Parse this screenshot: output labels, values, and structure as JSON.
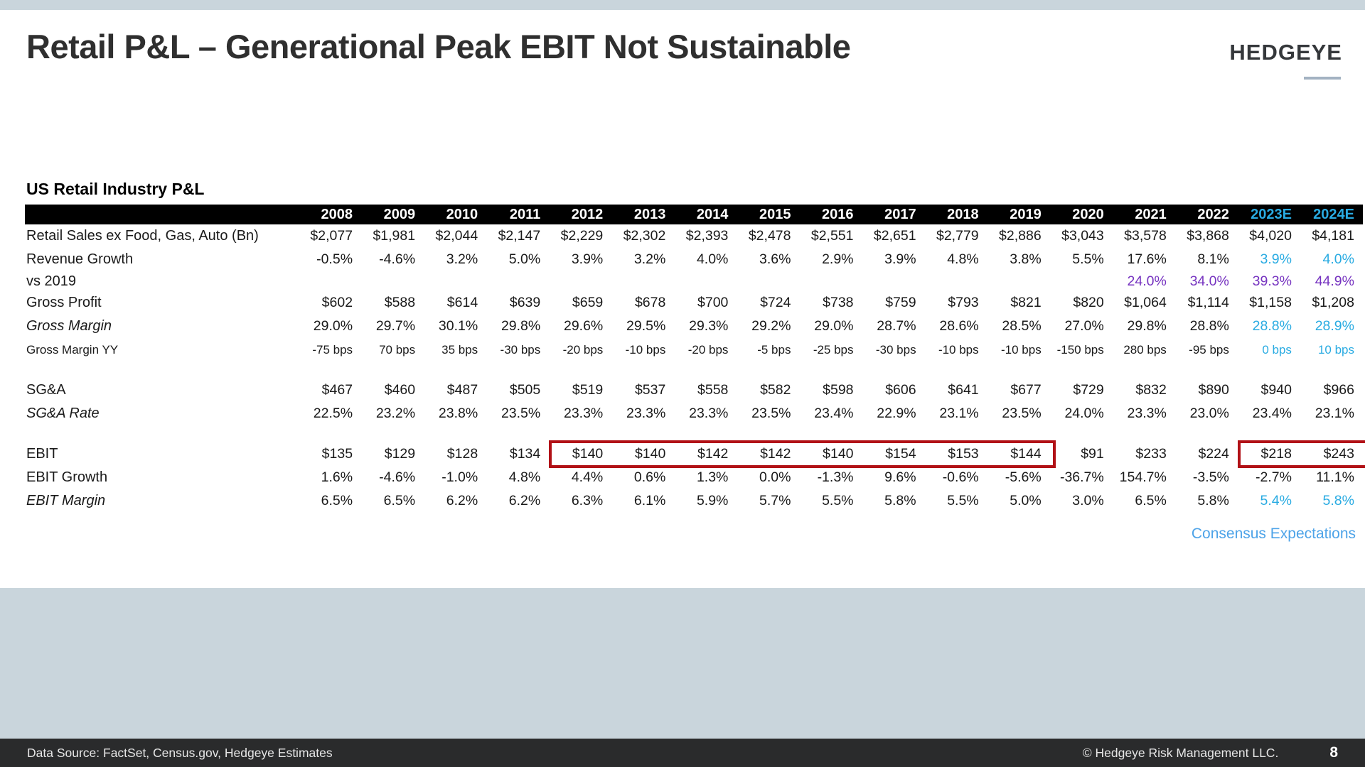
{
  "slide": {
    "title": "Retail P&L – Generational Peak EBIT Not Sustainable",
    "logo": "HEDGEYE",
    "consensus_label": "Consensus Expectations",
    "footer": {
      "source": "Data Source: FactSet, Census.gov, Hedgeye Estimates",
      "copyright": "© Hedgeye Risk Management LLC.",
      "page": "8"
    }
  },
  "colors": {
    "estimate_blue": "#29ABE2",
    "purple": "#7633C0",
    "consensus_blue": "#4DA3E8",
    "highlight_red": "#B11116",
    "band": "#C9D5DC",
    "footer_bg": "#2A2B2C",
    "header_bg": "#000000"
  },
  "table": {
    "section_title": "US Retail Industry P&L",
    "columns": [
      "2008",
      "2009",
      "2010",
      "2011",
      "2012",
      "2013",
      "2014",
      "2015",
      "2016",
      "2017",
      "2018",
      "2019",
      "2020",
      "2021",
      "2022",
      "2023E",
      "2024E"
    ],
    "estimate_column_start": 15,
    "rows": [
      {
        "label": "Retail Sales ex Food, Gas, Auto (Bn)",
        "values": [
          "$2,077",
          "$1,981",
          "$2,044",
          "$2,147",
          "$2,229",
          "$2,302",
          "$2,393",
          "$2,478",
          "$2,551",
          "$2,651",
          "$2,779",
          "$2,886",
          "$3,043",
          "$3,578",
          "$3,868",
          "$4,020",
          "$4,181"
        ]
      },
      {
        "label": "Revenue Growth",
        "blue_last_two": true,
        "values": [
          "-0.5%",
          "-4.6%",
          "3.2%",
          "5.0%",
          "3.9%",
          "3.2%",
          "4.0%",
          "3.6%",
          "2.9%",
          "3.9%",
          "4.8%",
          "3.8%",
          "5.5%",
          "17.6%",
          "8.1%",
          "3.9%",
          "4.0%"
        ]
      },
      {
        "label": "vs 2019",
        "all_purple": true,
        "compact": true,
        "values": [
          "",
          "",
          "",
          "",
          "",
          "",
          "",
          "",
          "",
          "",
          "",
          "",
          "",
          "24.0%",
          "34.0%",
          "39.3%",
          "44.9%"
        ]
      },
      {
        "label": "Gross Profit",
        "values": [
          "$602",
          "$588",
          "$614",
          "$639",
          "$659",
          "$678",
          "$700",
          "$724",
          "$738",
          "$759",
          "$793",
          "$821",
          "$820",
          "$1,064",
          "$1,114",
          "$1,158",
          "$1,208"
        ]
      },
      {
        "label": "Gross Margin",
        "italic": true,
        "blue_last_two": true,
        "values": [
          "29.0%",
          "29.7%",
          "30.1%",
          "29.8%",
          "29.6%",
          "29.5%",
          "29.3%",
          "29.2%",
          "29.0%",
          "28.7%",
          "28.6%",
          "28.5%",
          "27.0%",
          "29.8%",
          "28.8%",
          "28.8%",
          "28.9%"
        ]
      },
      {
        "label": "Gross Margin YY",
        "small": true,
        "blue_last_two": true,
        "values": [
          "-75 bps",
          "70 bps",
          "35 bps",
          "-30 bps",
          "-20 bps",
          "-10 bps",
          "-20 bps",
          "-5 bps",
          "-25 bps",
          "-30 bps",
          "-10 bps",
          "-10 bps",
          "-150 bps",
          "280 bps",
          "-95 bps",
          "0 bps",
          "10 bps"
        ]
      },
      {
        "spacer": true
      },
      {
        "label": "SG&A",
        "values": [
          "$467",
          "$460",
          "$487",
          "$505",
          "$519",
          "$537",
          "$558",
          "$582",
          "$598",
          "$606",
          "$641",
          "$677",
          "$729",
          "$832",
          "$890",
          "$940",
          "$966"
        ]
      },
      {
        "label": "SG&A Rate",
        "italic": true,
        "values": [
          "22.5%",
          "23.2%",
          "23.8%",
          "23.5%",
          "23.3%",
          "23.3%",
          "23.3%",
          "23.5%",
          "23.4%",
          "22.9%",
          "23.1%",
          "23.5%",
          "24.0%",
          "23.3%",
          "23.0%",
          "23.4%",
          "23.1%"
        ]
      },
      {
        "spacer": true
      },
      {
        "label": "EBIT",
        "red_box_ranges": [
          [
            4,
            11
          ],
          [
            15,
            16
          ]
        ],
        "values": [
          "$135",
          "$129",
          "$128",
          "$134",
          "$140",
          "$140",
          "$142",
          "$142",
          "$140",
          "$154",
          "$153",
          "$144",
          "$91",
          "$233",
          "$224",
          "$218",
          "$243"
        ]
      },
      {
        "label": "EBIT Growth",
        "values": [
          "1.6%",
          "-4.6%",
          "-1.0%",
          "4.8%",
          "4.4%",
          "0.6%",
          "1.3%",
          "0.0%",
          "-1.3%",
          "9.6%",
          "-0.6%",
          "-5.6%",
          "-36.7%",
          "154.7%",
          "-3.5%",
          "-2.7%",
          "11.1%"
        ]
      },
      {
        "label": "EBIT Margin",
        "italic": true,
        "blue_last_two": true,
        "values": [
          "6.5%",
          "6.5%",
          "6.2%",
          "6.2%",
          "6.3%",
          "6.1%",
          "5.9%",
          "5.7%",
          "5.5%",
          "5.8%",
          "5.5%",
          "5.0%",
          "3.0%",
          "6.5%",
          "5.8%",
          "5.4%",
          "5.8%"
        ]
      }
    ]
  }
}
